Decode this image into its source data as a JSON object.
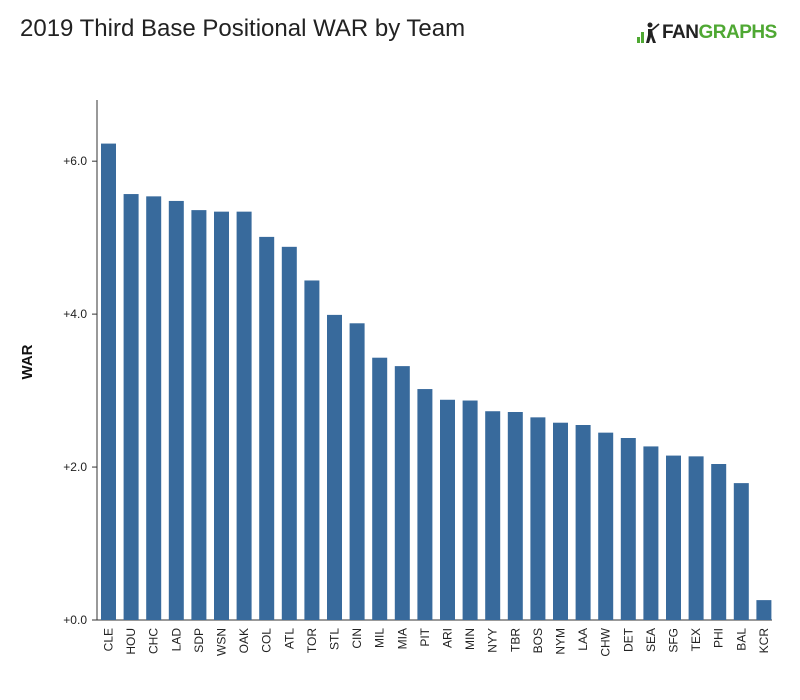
{
  "title": "2019 Third Base Positional WAR by Team",
  "logo": {
    "part1": "FAN",
    "part2": "GRAPHS",
    "icon": "fangraphs-logo-icon"
  },
  "colors": {
    "bar": "#386a9c",
    "logo_green": "#4fa833"
  },
  "chart_data": {
    "type": "bar",
    "title": "2019 Third Base Positional WAR by Team",
    "xlabel": "",
    "ylabel": "WAR",
    "ylim": [
      0,
      6.8
    ],
    "yticks": [
      0,
      2,
      4,
      6
    ],
    "ytick_labels": [
      "+0.0",
      "+2.0",
      "+4.0",
      "+6.0"
    ],
    "grid": false,
    "categories": [
      "CLE",
      "HOU",
      "CHC",
      "LAD",
      "SDP",
      "WSN",
      "OAK",
      "COL",
      "ATL",
      "TOR",
      "STL",
      "CIN",
      "MIL",
      "MIA",
      "PIT",
      "ARI",
      "MIN",
      "NYY",
      "TBR",
      "BOS",
      "NYM",
      "LAA",
      "CHW",
      "DET",
      "SEA",
      "SFG",
      "TEX",
      "PHI",
      "BAL",
      "KCR"
    ],
    "values": [
      6.23,
      5.57,
      5.54,
      5.48,
      5.36,
      5.34,
      5.34,
      5.01,
      4.88,
      4.44,
      3.99,
      3.88,
      3.43,
      3.32,
      3.02,
      2.88,
      2.87,
      2.73,
      2.72,
      2.65,
      2.58,
      2.55,
      2.45,
      2.38,
      2.27,
      2.15,
      2.14,
      2.04,
      1.79,
      0.26
    ]
  }
}
